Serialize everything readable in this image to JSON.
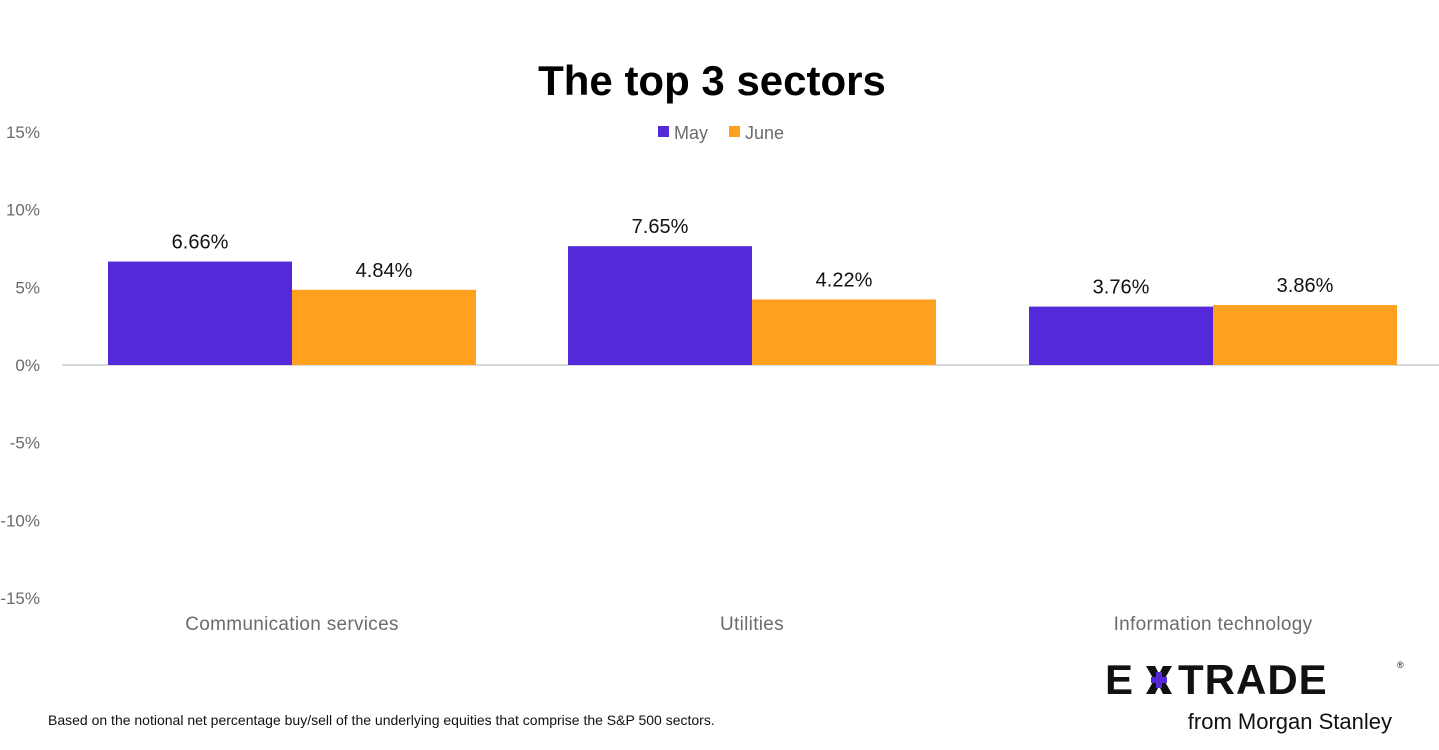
{
  "chart_data": {
    "type": "bar",
    "title": "The top 3 sectors",
    "categories": [
      "Communication services",
      "Utilities",
      "Information technology"
    ],
    "series": [
      {
        "name": "May",
        "values": [
          6.66,
          7.65,
          3.76
        ],
        "labels": [
          "6.66%",
          "7.65%",
          "3.76%"
        ],
        "color": "#5429da"
      },
      {
        "name": "June",
        "values": [
          4.84,
          4.22,
          3.86
        ],
        "labels": [
          "4.84%",
          "4.22%",
          "3.86%"
        ],
        "color": "#ffa01f"
      }
    ],
    "yticks": [
      15,
      10,
      5,
      0,
      -5,
      -10,
      -15
    ],
    "ytick_labels": [
      "15%",
      "10%",
      "5%",
      "0%",
      "-5%",
      "-10%",
      "-15%"
    ],
    "ylim": [
      -15,
      15
    ],
    "xlabel": "",
    "ylabel": "",
    "grid": false,
    "legend_position": "top-center"
  },
  "footnote": "Based on the notional net percentage buy/sell of the underlying equities that comprise the S&P 500 sectors.",
  "logo": {
    "brand": "E*TRADE",
    "subtitle": "from Morgan Stanley"
  },
  "colors": {
    "accent": "#5429da",
    "secondary": "#ffa01f",
    "baseline": "#d9d9d9"
  }
}
